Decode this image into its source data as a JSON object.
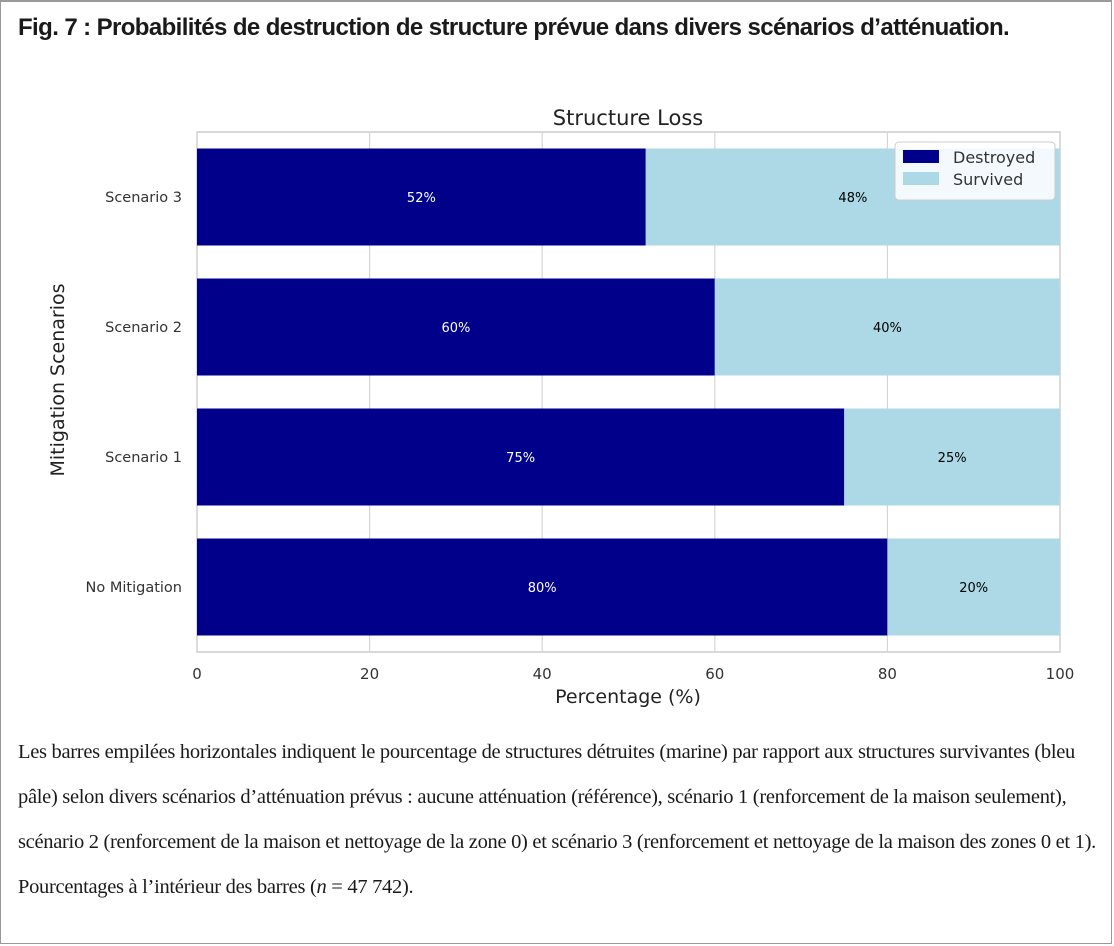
{
  "figure": {
    "title": "Fig. 7 : Probabilités de destruction de structure prévue dans divers scénarios d’atténuation.",
    "caption_parts": [
      "Les barres empilées horizontales indiquent le pourcentage de structures détruites (marine) par rapport aux structures survivantes (bleu pâle) selon divers scénarios d’atténuation prévus : aucune atténuation (référence), scénario 1 (renforcement de la maison seulement), scénario 2 (renforcement de la maison et nettoyage de la zone 0) et scénario 3 (renforcement et nettoyage de la maison des zones 0 et 1). Pourcentages à l’intérieur des barres (",
      "n",
      " = 47 742)."
    ]
  },
  "chart_data": {
    "type": "bar",
    "orientation": "horizontal",
    "stacked": true,
    "title": "Structure Loss",
    "xlabel": "Percentage (%)",
    "ylabel": "Mitigation Scenarios",
    "categories": [
      "No Mitigation",
      "Scenario 1",
      "Scenario 2",
      "Scenario 3"
    ],
    "series": [
      {
        "name": "Destroyed",
        "values": [
          80,
          75,
          60,
          52
        ],
        "labels": [
          "80%",
          "75%",
          "60%",
          "52%"
        ],
        "color": "#00008b",
        "label_color": "#ffffff"
      },
      {
        "name": "Survived",
        "values": [
          20,
          25,
          40,
          48
        ],
        "labels": [
          "20%",
          "25%",
          "40%",
          "48%"
        ],
        "color": "#add8e6",
        "label_color": "#000000"
      }
    ],
    "xlim": [
      0,
      100
    ],
    "xticks": [
      "0",
      "20",
      "40",
      "60",
      "80",
      "100"
    ],
    "grid": true,
    "legend": "top-right"
  }
}
